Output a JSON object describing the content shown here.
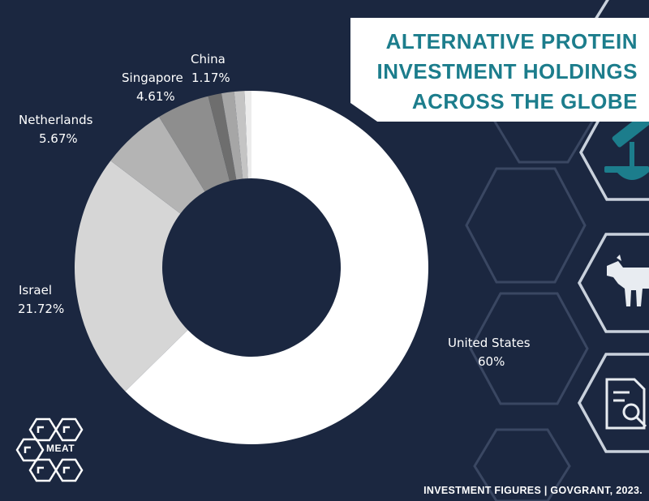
{
  "title": {
    "lines": [
      "ALTERNATIVE PROTEIN",
      "INVESTMENT HOLDINGS",
      "ACROSS THE GLOBE"
    ]
  },
  "source": "INVESTMENT FIGURES | GOVGRANT, 2023.",
  "logo": {
    "text": "MEAT"
  },
  "colors": {
    "background": "#1b2740",
    "title": "#1c7d8c",
    "slices": [
      "#ffffff",
      "#d6d6d6",
      "#b4b4b4",
      "#8e8e8e",
      "#6e6e6e",
      "#a6a6a6",
      "#c4c4c4",
      "#ececec"
    ]
  },
  "icons": [
    "hexagon-grid-decoration",
    "microscope-icon",
    "cow-icon",
    "document-search-icon",
    "meat-logo-icon"
  ],
  "chart_data": {
    "type": "pie",
    "donut": true,
    "categories": [
      "United States",
      "Israel",
      "Netherlands",
      "Singapore",
      "China",
      "",
      "",
      ""
    ],
    "values": [
      60,
      21.72,
      5.67,
      4.61,
      1.17,
      1.1,
      0.9,
      0.6
    ],
    "value_labels": [
      "60%",
      "21.72%",
      "5.67%",
      "4.61%",
      "1.17%",
      "",
      "",
      ""
    ],
    "legend": "none",
    "start_angle_deg": 0,
    "direction": "clockwise"
  }
}
